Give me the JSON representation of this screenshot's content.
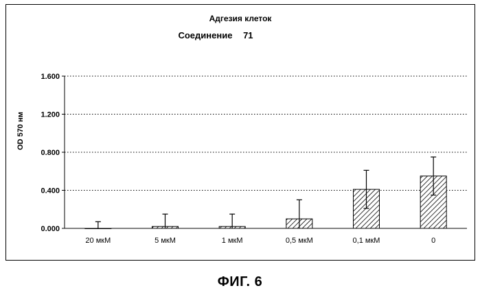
{
  "title": "Адгезия клеток",
  "subtitle_label": "Соединение",
  "subtitle_value": "71",
  "caption": "ФИГ. 6",
  "colors": {
    "axis": "#000000",
    "grid": "#000000",
    "bar_fill": "#ffffff",
    "hatch": "#000000"
  },
  "chart_data": {
    "type": "bar",
    "title": "Адгезия клеток",
    "subtitle": "Соединение 71",
    "xlabel": "",
    "ylabel": "OD 570 нм",
    "ylim": [
      0,
      1.6
    ],
    "yticks": [
      0.0,
      0.4,
      0.8,
      1.2,
      1.6
    ],
    "ytick_labels": [
      "0.000",
      "0.400",
      "0.800",
      "1.200",
      "1.600"
    ],
    "grid": "horizontal dotted",
    "categories": [
      "20 мкМ",
      "5 мкМ",
      "1 мкМ",
      "0,5 мкМ",
      "0,1 мкМ",
      "0"
    ],
    "values": [
      0.0,
      0.02,
      0.02,
      0.1,
      0.41,
      0.55
    ],
    "errors": [
      0.07,
      0.13,
      0.13,
      0.2,
      0.2,
      0.2
    ],
    "legend": "none"
  }
}
